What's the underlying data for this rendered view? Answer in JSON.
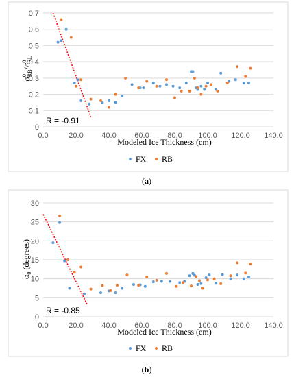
{
  "colors": {
    "FX": "#5b9bd5",
    "RB": "#ed7d31",
    "trend": "#ff0000",
    "grid": "#d9d9d9"
  },
  "chart_data": [
    {
      "panel": "a",
      "caption": "(a)",
      "type": "scatter",
      "xlabel": "Modeled Ice Thickness (cm)",
      "ylabel_base": "σ",
      "ylabel_sup1": "0",
      "ylabel_sub1": "RB",
      "ylabel_mid": "/σ",
      "ylabel_sup2": "0",
      "ylabel_sub2": "RL",
      "xlim": [
        0,
        140
      ],
      "ylim": [
        0,
        0.7
      ],
      "x_ticks": [
        "0.0",
        "20.0",
        "40.0",
        "60.0",
        "80.0",
        "100.0",
        "120.0",
        "140.0"
      ],
      "x_tick_values": [
        0,
        20,
        40,
        60,
        80,
        100,
        120,
        140
      ],
      "y_ticks": [
        "0",
        "0.1",
        "0.2",
        "0.3",
        "0.4",
        "0.5",
        "0.6",
        "0.7"
      ],
      "y_tick_values": [
        0,
        0.1,
        0.2,
        0.3,
        0.4,
        0.5,
        0.6,
        0.7
      ],
      "grid": true,
      "legend_position": "bottom",
      "annotation": "R = -0.91",
      "trendline": {
        "x": [
          6,
          29
        ],
        "y": [
          0.7,
          0.06
        ]
      },
      "series": [
        {
          "name": "FX",
          "points": [
            [
              9,
              0.52
            ],
            [
              11,
              0.53
            ],
            [
              14,
              0.6
            ],
            [
              19,
              0.27
            ],
            [
              21,
              0.29
            ],
            [
              23,
              0.16
            ],
            [
              28,
              0.14
            ],
            [
              36,
              0.15
            ],
            [
              40,
              0.16
            ],
            [
              44,
              0.15
            ],
            [
              48,
              0.19
            ],
            [
              54,
              0.26
            ],
            [
              59,
              0.24
            ],
            [
              61,
              0.24
            ],
            [
              67,
              0.27
            ],
            [
              71,
              0.25
            ],
            [
              75,
              0.26
            ],
            [
              79,
              0.25
            ],
            [
              83,
              0.24
            ],
            [
              87,
              0.27
            ],
            [
              90,
              0.34
            ],
            [
              91,
              0.34
            ],
            [
              93,
              0.24
            ],
            [
              94,
              0.23
            ],
            [
              96,
              0.25
            ],
            [
              98,
              0.23
            ],
            [
              100,
              0.27
            ],
            [
              105,
              0.23
            ],
            [
              108,
              0.33
            ],
            [
              113,
              0.28
            ],
            [
              117,
              0.29
            ],
            [
              122,
              0.27
            ],
            [
              125,
              0.27
            ]
          ]
        },
        {
          "name": "RB",
          "points": [
            [
              11,
              0.66
            ],
            [
              17,
              0.55
            ],
            [
              20,
              0.25
            ],
            [
              23,
              0.29
            ],
            [
              29,
              0.17
            ],
            [
              35,
              0.16
            ],
            [
              40,
              0.12
            ],
            [
              44,
              0.2
            ],
            [
              50,
              0.3
            ],
            [
              58,
              0.24
            ],
            [
              63,
              0.28
            ],
            [
              69,
              0.25
            ],
            [
              75,
              0.29
            ],
            [
              80,
              0.18
            ],
            [
              84,
              0.22
            ],
            [
              89,
              0.22
            ],
            [
              92,
              0.3
            ],
            [
              94,
              0.24
            ],
            [
              96,
              0.2
            ],
            [
              99,
              0.25
            ],
            [
              102,
              0.26
            ],
            [
              106,
              0.22
            ],
            [
              112,
              0.27
            ],
            [
              118,
              0.37
            ],
            [
              123,
              0.31
            ],
            [
              126,
              0.36
            ]
          ]
        }
      ]
    },
    {
      "panel": "b",
      "caption": "(b)",
      "type": "scatter",
      "xlabel": "Modeled Ice Thickness (cm)",
      "ylabel_base": "α",
      "ylabel_sub1": "0",
      "ylabel_rest": " (degrees)",
      "xlim": [
        0,
        140
      ],
      "ylim": [
        0,
        30
      ],
      "x_ticks": [
        "0.0",
        "20.0",
        "40.0",
        "60.0",
        "80.0",
        "100.0",
        "120.0",
        "140.0"
      ],
      "x_tick_values": [
        0,
        20,
        40,
        60,
        80,
        100,
        120,
        140
      ],
      "y_ticks": [
        "0",
        "5",
        "10",
        "15",
        "20",
        "25",
        "30"
      ],
      "y_tick_values": [
        0,
        5,
        10,
        15,
        20,
        25,
        30
      ],
      "grid": true,
      "legend_position": "bottom",
      "annotation": "R = -0.85",
      "trendline": {
        "x": [
          0,
          27
        ],
        "y": [
          27,
          3
        ]
      },
      "series": [
        {
          "name": "FX",
          "points": [
            [
              6,
              19.5
            ],
            [
              10,
              24.8
            ],
            [
              13,
              14.7
            ],
            [
              16,
              7.5
            ],
            [
              25,
              6
            ],
            [
              35,
              6.3
            ],
            [
              40,
              6.8
            ],
            [
              44,
              6.3
            ],
            [
              48,
              7.5
            ],
            [
              55,
              8.5
            ],
            [
              59,
              8.4
            ],
            [
              62,
              8
            ],
            [
              67,
              9.2
            ],
            [
              72,
              9.3
            ],
            [
              77,
              9.3
            ],
            [
              83,
              9
            ],
            [
              86,
              9.3
            ],
            [
              89,
              10.8
            ],
            [
              91,
              11.4
            ],
            [
              92,
              10.9
            ],
            [
              94,
              8.5
            ],
            [
              96,
              8.7
            ],
            [
              99,
              10.3
            ],
            [
              101,
              11
            ],
            [
              105,
              8.8
            ],
            [
              109,
              11.1
            ],
            [
              114,
              10
            ],
            [
              118,
              11
            ],
            [
              122,
              10
            ],
            [
              125,
              10.5
            ]
          ]
        },
        {
          "name": "RB",
          "points": [
            [
              10,
              26.6
            ],
            [
              15,
              15
            ],
            [
              19,
              11.7
            ],
            [
              23,
              13.1
            ],
            [
              29,
              7.3
            ],
            [
              36,
              8.2
            ],
            [
              41,
              6.9
            ],
            [
              45,
              8.3
            ],
            [
              51,
              11
            ],
            [
              58,
              8.3
            ],
            [
              63,
              10.5
            ],
            [
              69,
              9.6
            ],
            [
              75,
              11.4
            ],
            [
              81,
              8
            ],
            [
              85,
              9
            ],
            [
              90,
              8.1
            ],
            [
              93,
              10.6
            ],
            [
              95,
              9.5
            ],
            [
              97,
              7.5
            ],
            [
              100,
              9.7
            ],
            [
              104,
              10
            ],
            [
              108,
              8.7
            ],
            [
              114,
              10.8
            ],
            [
              118,
              14.2
            ],
            [
              123,
              11.5
            ],
            [
              126,
              13.9
            ]
          ]
        }
      ]
    }
  ]
}
